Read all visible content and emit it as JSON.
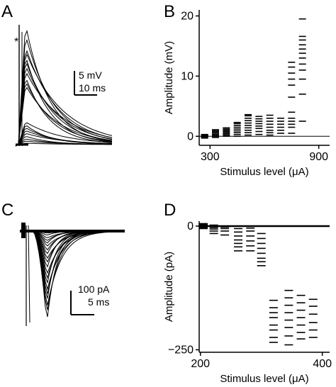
{
  "figure": {
    "panels": [
      {
        "id": "A",
        "label": "A"
      },
      {
        "id": "B",
        "label": "B"
      },
      {
        "id": "C",
        "label": "C"
      },
      {
        "id": "D",
        "label": "D"
      }
    ],
    "panel_a": {
      "asterisk": "*",
      "scale_y": "5 mV",
      "scale_x": "10 ms",
      "trace_color": "#000000"
    },
    "panel_c": {
      "scale_y": "100 pA",
      "scale_x": "5 ms",
      "trace_color": "#000000"
    }
  },
  "chart_data": [
    {
      "panel": "B",
      "type": "scatter",
      "marker": "short horizontal dash",
      "xlabel": "Stimulus level (μA)",
      "ylabel": "Amplitude (mV)",
      "xlim": [
        240,
        960
      ],
      "ylim": [
        -1.5,
        21
      ],
      "xticks": [
        300,
        900
      ],
      "yticks": [
        0,
        10,
        20
      ],
      "zero_line": true,
      "grid": false,
      "series": [
        {
          "x": 270,
          "values": [
            -0.3,
            -0.2,
            -0.1,
            0.0,
            0.1,
            0.15,
            0.2,
            0.3
          ]
        },
        {
          "x": 330,
          "values": [
            -0.2,
            0.0,
            0.1,
            0.3,
            0.5,
            0.7,
            0.9,
            1.1
          ]
        },
        {
          "x": 390,
          "values": [
            0.0,
            0.2,
            0.4,
            0.6,
            0.8,
            1.0,
            1.2,
            1.4
          ]
        },
        {
          "x": 450,
          "values": [
            0.0,
            0.3,
            0.6,
            0.9,
            1.2,
            1.5,
            1.8,
            2.1,
            2.3
          ]
        },
        {
          "x": 510,
          "values": [
            0.2,
            0.6,
            1.0,
            1.4,
            1.8,
            2.2,
            2.6,
            3.0,
            3.4,
            3.6
          ]
        },
        {
          "x": 570,
          "values": [
            0.3,
            0.8,
            1.3,
            1.7,
            2.1,
            2.5,
            2.9,
            3.3
          ]
        },
        {
          "x": 630,
          "values": [
            0.2,
            0.6,
            1.0,
            1.5,
            2.0,
            2.5,
            3.0,
            3.5
          ]
        },
        {
          "x": 690,
          "values": [
            0.5,
            1.0,
            1.5,
            2.0,
            2.5,
            3.0
          ]
        },
        {
          "x": 750,
          "values": [
            0.5,
            1.5,
            2.0,
            2.5,
            3.0,
            4.0,
            6.5,
            8.5,
            9.5,
            10.5,
            11.5,
            12.3
          ]
        },
        {
          "x": 810,
          "values": [
            2.5,
            7.0,
            9.5,
            11.0,
            12.0,
            13.0,
            13.8,
            14.5,
            15.2,
            16.0,
            16.6,
            19.5
          ]
        }
      ]
    },
    {
      "panel": "D",
      "type": "scatter",
      "marker": "short horizontal dash",
      "xlabel": "Stimulus level (μA)",
      "ylabel": "Amplitude (pA)",
      "xlim": [
        198,
        412
      ],
      "ylim": [
        -255,
        10
      ],
      "xticks": [
        200,
        400
      ],
      "yticks": [
        0,
        -250
      ],
      "zero_line": true,
      "grid": false,
      "series": [
        {
          "x": 205,
          "values": [
            5,
            3,
            1,
            -1,
            -3,
            -5
          ]
        },
        {
          "x": 222,
          "values": [
            2,
            0,
            -3,
            -6,
            -10,
            -15
          ]
        },
        {
          "x": 240,
          "values": [
            0,
            -2,
            -5,
            -10,
            -18
          ]
        },
        {
          "x": 262,
          "values": [
            -5,
            -12,
            -20,
            -28,
            -35,
            -42,
            -50
          ]
        },
        {
          "x": 282,
          "values": [
            -4,
            -10,
            -20,
            -30,
            -40,
            -50
          ]
        },
        {
          "x": 300,
          "values": [
            -15,
            -25,
            -35,
            -45,
            -55,
            -65,
            -72,
            -80
          ]
        },
        {
          "x": 320,
          "values": [
            -150,
            -165,
            -175,
            -185,
            -200,
            -210,
            -225,
            -235
          ]
        },
        {
          "x": 345,
          "values": [
            -130,
            -145,
            -160,
            -175,
            -190,
            -205,
            -222,
            -240
          ]
        },
        {
          "x": 365,
          "values": [
            -140,
            -155,
            -170,
            -185,
            -200,
            -215,
            -228
          ]
        },
        {
          "x": 385,
          "values": [
            -148,
            -162,
            -178,
            -195,
            -210,
            -225
          ]
        }
      ]
    }
  ]
}
